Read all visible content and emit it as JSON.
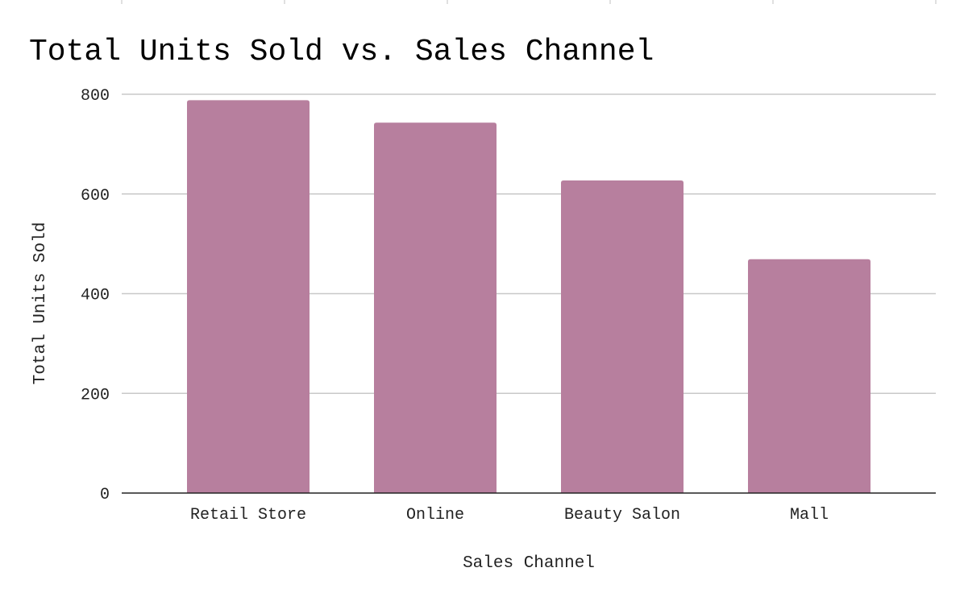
{
  "chart_data": {
    "type": "bar",
    "title": "Total Units Sold vs. Sales Channel",
    "xlabel": "Sales Channel",
    "ylabel": "Total Units Sold",
    "categories": [
      "Retail Store",
      "Online",
      "Beauty Salon",
      "Mall"
    ],
    "values": [
      788,
      743,
      627,
      469
    ],
    "ylim": [
      0,
      800
    ],
    "yticks": [
      0,
      200,
      400,
      600,
      800
    ],
    "ytick_labels": [
      "0",
      "200",
      "400",
      "600",
      "800"
    ],
    "grid": true,
    "legend": "none",
    "bar_color": "#b77f9e",
    "grid_color": "#c8c8c8",
    "axis_color": "#222222"
  }
}
